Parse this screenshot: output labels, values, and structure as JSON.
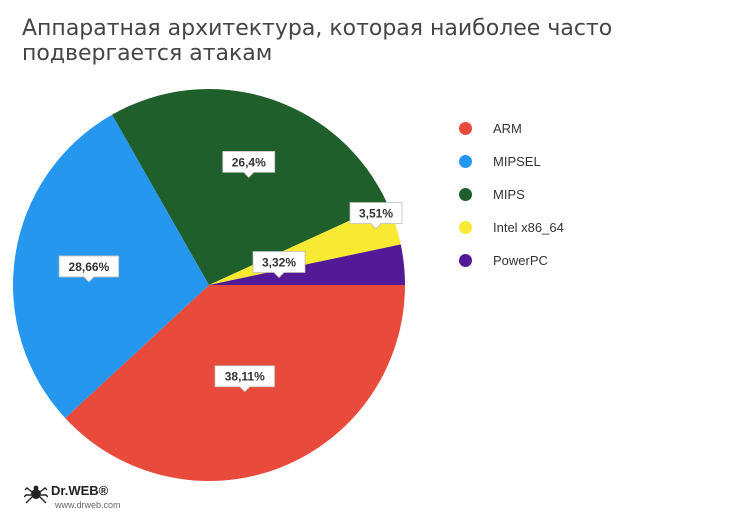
{
  "title": "Аппаратная архитектура, которая наиболее часто подвергается атакам",
  "chart_data": {
    "type": "pie",
    "title": "Аппаратная архитектура, которая наиболее часто подвергается атакам",
    "slices": [
      {
        "name": "ARM",
        "value": 38.11,
        "label": "38,11%",
        "color": "#e84a3c"
      },
      {
        "name": "MIPSEL",
        "value": 28.66,
        "label": "28,66%",
        "color": "#2597ef"
      },
      {
        "name": "MIPS",
        "value": 26.4,
        "label": "26,4%",
        "color": "#1f5f2b"
      },
      {
        "name": "Intel x86_64",
        "value": 3.51,
        "label": "3,51%",
        "color": "#f8ea33"
      },
      {
        "name": "PowerPC",
        "value": 3.32,
        "label": "3,32%",
        "color": "#521a96"
      }
    ],
    "legend_position": "right"
  },
  "footer": {
    "brand": "Dr.WEB®",
    "site": "www.drweb.com"
  }
}
